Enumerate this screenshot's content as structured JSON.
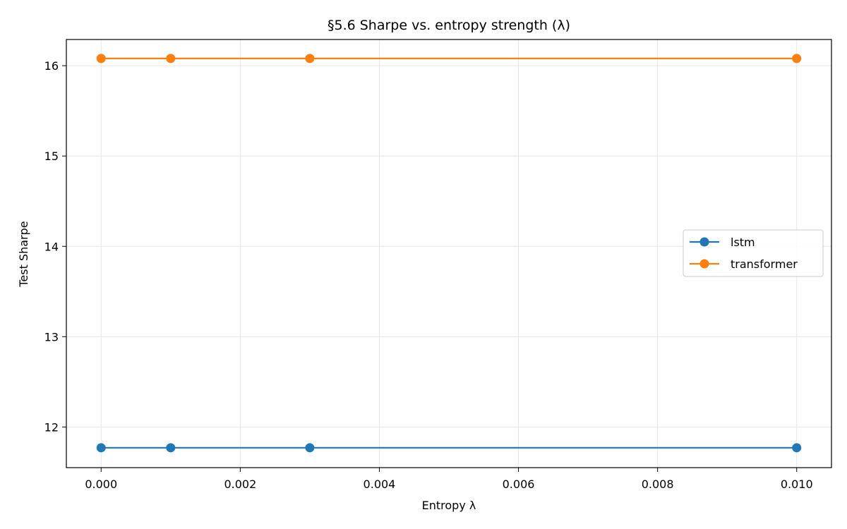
{
  "chart_data": {
    "type": "line",
    "title": "§5.6 Sharpe vs. entropy strength (λ)",
    "xlabel": "Entropy λ",
    "ylabel": "Test Sharpe",
    "xlim": [
      -0.0005,
      0.0105
    ],
    "ylim": [
      11.55,
      16.29
    ],
    "xticks": [
      0.0,
      0.002,
      0.004,
      0.006,
      0.008,
      0.01
    ],
    "xtick_labels": [
      "0.000",
      "0.002",
      "0.004",
      "0.006",
      "0.008",
      "0.010"
    ],
    "yticks": [
      12,
      13,
      14,
      15,
      16
    ],
    "ytick_labels": [
      "12",
      "13",
      "14",
      "15",
      "16"
    ],
    "grid": true,
    "legend_position": "center-right",
    "x": [
      0.0,
      0.001,
      0.003,
      0.01
    ],
    "series": [
      {
        "name": "lstm",
        "color": "#1f77b4",
        "marker": "circle",
        "values": [
          11.77,
          11.77,
          11.77,
          11.77
        ]
      },
      {
        "name": "transformer",
        "color": "#ff7f0e",
        "marker": "circle",
        "values": [
          16.08,
          16.08,
          16.08,
          16.08
        ]
      }
    ]
  }
}
